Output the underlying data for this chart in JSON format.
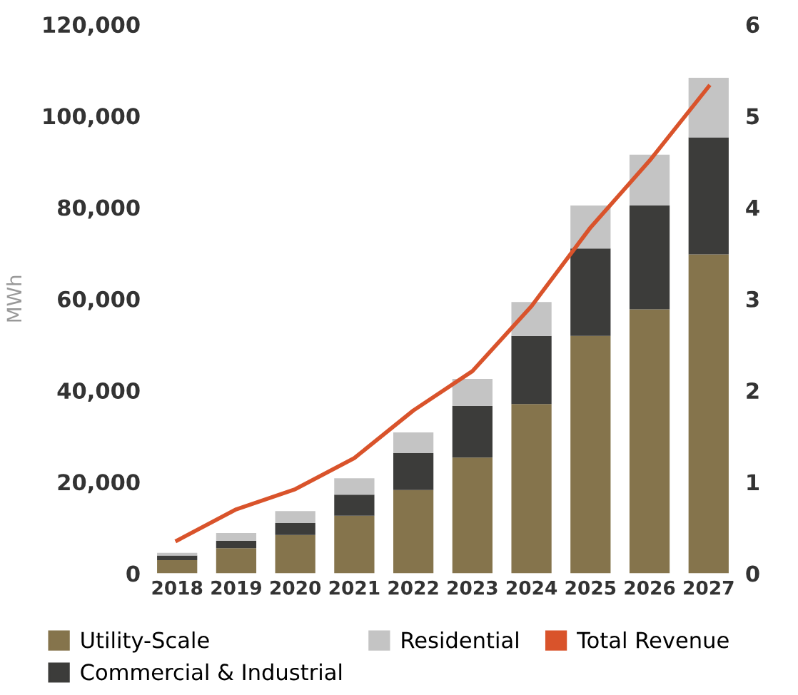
{
  "chart_data": {
    "type": "bar",
    "stacked": true,
    "ylabel": "MWh",
    "categories": [
      "2018",
      "2019",
      "2020",
      "2021",
      "2022",
      "2023",
      "2024",
      "2025",
      "2026",
      "2027"
    ],
    "series": [
      {
        "name": "Utility-Scale",
        "color": "#85744c",
        "values": [
          2900,
          5500,
          8400,
          12600,
          18200,
          25300,
          37000,
          51900,
          57700,
          69700
        ]
      },
      {
        "name": "Commercial & Industrial",
        "color": "#3c3c3a",
        "values": [
          1000,
          1600,
          2600,
          4600,
          8100,
          11300,
          14900,
          19100,
          22700,
          25600
        ]
      },
      {
        "name": "Residential",
        "color": "#c4c4c4",
        "values": [
          600,
          1700,
          2600,
          3600,
          4500,
          5900,
          7400,
          9400,
          11100,
          13000
        ]
      },
      {
        "name": "Total Revenue",
        "type": "line",
        "axis": "y2",
        "color": "#d9532b",
        "values": [
          0.36,
          0.7,
          0.92,
          1.26,
          1.78,
          2.21,
          2.92,
          3.78,
          4.51,
          5.32
        ]
      }
    ],
    "ylim": [
      0,
      120000
    ],
    "yticks": [
      {
        "value": 0,
        "label": "0"
      },
      {
        "value": 20000,
        "label": "20,000"
      },
      {
        "value": 40000,
        "label": "40,000"
      },
      {
        "value": 60000,
        "label": "60,000"
      },
      {
        "value": 80000,
        "label": "80,000"
      },
      {
        "value": 100000,
        "label": "100,000"
      },
      {
        "value": 120000,
        "label": "120,000"
      }
    ],
    "y2lim": [
      0,
      6
    ],
    "y2ticks": [
      0,
      1,
      2,
      3,
      4,
      5,
      6
    ],
    "grid": false,
    "legend": "bottom"
  }
}
